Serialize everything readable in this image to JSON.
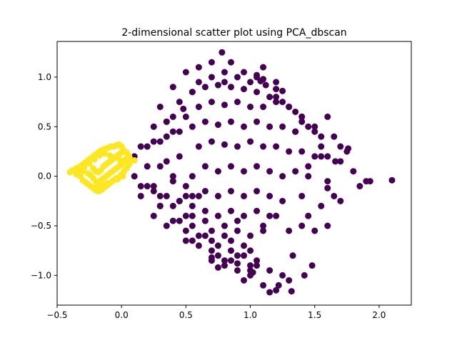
{
  "chart_data": {
    "type": "scatter",
    "title": "2-dimensional scatter plot using PCA_dbscan",
    "xlabel": "",
    "ylabel": "",
    "xlim": [
      -0.5,
      2.25
    ],
    "ylim": [
      -1.3,
      1.36
    ],
    "x_ticks": [
      {
        "value": -0.5,
        "label": "−0.5"
      },
      {
        "value": 0.0,
        "label": "0.0"
      },
      {
        "value": 0.5,
        "label": "0.5"
      },
      {
        "value": 1.0,
        "label": "1.0"
      },
      {
        "value": 1.5,
        "label": "1.5"
      },
      {
        "value": 2.0,
        "label": "2.0"
      }
    ],
    "y_ticks": [
      {
        "value": -1.0,
        "label": "−1.0"
      },
      {
        "value": -0.5,
        "label": "−0.5"
      },
      {
        "value": 0.0,
        "label": "0.0"
      },
      {
        "value": 0.5,
        "label": "0.5"
      },
      {
        "value": 1.0,
        "label": "1.0"
      }
    ],
    "grid": false,
    "legend": "none",
    "series": [
      {
        "color": "#440154",
        "x": [
          0.4,
          0.5,
          0.6,
          0.7,
          0.8,
          0.9,
          1.0,
          1.1,
          1.2,
          0.3,
          0.45,
          0.55,
          0.65,
          0.75,
          0.85,
          0.95,
          1.05,
          1.15,
          0.25,
          0.35,
          0.5,
          0.6,
          0.7,
          0.8,
          0.9,
          1.0,
          1.1,
          1.2,
          1.3,
          1.4,
          0.2,
          0.3,
          0.4,
          0.55,
          0.65,
          0.75,
          0.85,
          0.95,
          1.05,
          1.15,
          1.25,
          1.35,
          1.5,
          0.2,
          0.35,
          0.45,
          0.6,
          0.7,
          0.8,
          0.9,
          1.0,
          1.1,
          1.2,
          1.3,
          1.4,
          1.55,
          1.7,
          0.25,
          0.4,
          0.55,
          0.65,
          0.75,
          0.85,
          0.95,
          1.05,
          1.15,
          1.25,
          1.35,
          1.45,
          1.6,
          0.3,
          0.45,
          0.55,
          0.65,
          0.75,
          0.85,
          0.95,
          1.05,
          1.15,
          1.25,
          1.4,
          0.45,
          0.55,
          0.65,
          0.75,
          0.85,
          0.95,
          1.05,
          1.15,
          0.6,
          0.7,
          0.8,
          0.9,
          1.0,
          1.1,
          0.75,
          0.85,
          0.95,
          1.05,
          0.1,
          0.2,
          0.3,
          0.4,
          0.5,
          0.3,
          0.4,
          0.5,
          0.6,
          0.55,
          0.65,
          0.8,
          0.9,
          1.1,
          0.35,
          0.5,
          0.65,
          0.75,
          0.85,
          0.95,
          1.05,
          1.15,
          1.25,
          1.3,
          0.7,
          0.8,
          0.9,
          1.0,
          1.1,
          1.2,
          0.6,
          0.7,
          0.8,
          0.9,
          1.0,
          0.5,
          1.5,
          1.6,
          1.4,
          1.3,
          1.2,
          0.1,
          0.15,
          0.25,
          0.35,
          0.45,
          0.15,
          0.25,
          0.35,
          0.45,
          0.25,
          0.4,
          0.55,
          0.7,
          0.15,
          0.3,
          0.5,
          0.55,
          1.75,
          1.8,
          1.85,
          1.9,
          1.65,
          1.7,
          1.6,
          1.65,
          1.45,
          1.5,
          1.55,
          1.35,
          1.4,
          1.5,
          1.55,
          1.6,
          1.2,
          1.25,
          1.3,
          1.35,
          1.4,
          1.45,
          0.85,
          1.1,
          0.95,
          1.05,
          0.78,
          0.6,
          0.7,
          0.8,
          1.08,
          1.12,
          1.2,
          1.25,
          1.05,
          0.55,
          0.85,
          0.7,
          0.75,
          0.9,
          1.0,
          0.4,
          0.48,
          0.35,
          1.22,
          1.33,
          1.6,
          1.7,
          1.55,
          1.45,
          1.93,
          2.1,
          1.66,
          1.76,
          0.95,
          1.15,
          1.32,
          1.42,
          1.48,
          1.0,
          1.02
        ],
        "y": [
          0.9,
          1.05,
          1.1,
          1.15,
          1.05,
          1.0,
          0.95,
          0.98,
          0.95,
          0.7,
          0.75,
          0.85,
          0.9,
          0.92,
          0.9,
          0.88,
          0.85,
          0.8,
          0.5,
          0.55,
          0.6,
          0.7,
          0.75,
          0.72,
          0.75,
          0.7,
          0.7,
          0.75,
          0.7,
          0.6,
          0.3,
          0.35,
          0.45,
          0.5,
          0.55,
          0.52,
          0.55,
          0.5,
          0.55,
          0.5,
          0.5,
          0.45,
          0.45,
          0.1,
          0.15,
          0.2,
          0.3,
          0.35,
          0.32,
          0.3,
          0.35,
          0.3,
          0.3,
          0.25,
          0.25,
          0.2,
          0.15,
          -0.1,
          -0.05,
          0.0,
          0.1,
          0.05,
          0.1,
          0.05,
          0.1,
          0.05,
          0.0,
          0.05,
          0.0,
          -0.05,
          -0.3,
          -0.25,
          -0.2,
          -0.15,
          -0.2,
          -0.15,
          -0.2,
          -0.15,
          -0.2,
          -0.25,
          -0.2,
          -0.45,
          -0.4,
          -0.45,
          -0.4,
          -0.35,
          -0.4,
          -0.35,
          -0.4,
          -0.6,
          -0.65,
          -0.6,
          -0.55,
          -0.6,
          -0.55,
          -0.8,
          -0.75,
          -0.8,
          -0.85,
          0.0,
          -0.1,
          -0.2,
          -0.3,
          -0.4,
          0.1,
          0.0,
          -0.1,
          -0.2,
          -0.3,
          -0.35,
          -0.5,
          -0.45,
          -0.5,
          -0.5,
          -0.55,
          -0.6,
          -0.7,
          -0.65,
          -0.7,
          -0.9,
          -0.95,
          -1.0,
          -1.05,
          -0.85,
          -0.9,
          -0.95,
          -1.0,
          -1.1,
          -1.15,
          -0.7,
          -0.75,
          -0.85,
          -0.8,
          -0.75,
          -0.65,
          -0.55,
          -0.5,
          -0.5,
          -0.55,
          -0.4,
          0.2,
          0.3,
          0.35,
          0.4,
          0.45,
          -0.1,
          -0.15,
          -0.2,
          -0.25,
          -0.4,
          -0.45,
          -0.5,
          -0.55,
          -0.2,
          -0.3,
          -0.2,
          -0.65,
          0.25,
          0.05,
          -0.1,
          -0.05,
          0.4,
          0.3,
          0.2,
          -0.2,
          0.1,
          0.2,
          0.3,
          0.45,
          0.6,
          0.5,
          0.4,
          0.6,
          0.8,
          0.75,
          0.7,
          0.65,
          0.55,
          0.5,
          1.15,
          1.1,
          1.05,
          1.0,
          1.25,
          0.95,
          1.0,
          0.95,
          0.96,
          0.92,
          0.88,
          0.86,
          1.02,
          0.85,
          -0.85,
          -0.82,
          -0.92,
          -0.88,
          -0.9,
          0.6,
          0.68,
          0.55,
          -1.1,
          -0.8,
          -0.12,
          -0.25,
          -0.3,
          -0.4,
          -0.05,
          -0.04,
          0.15,
          0.28,
          -1.05,
          -1.17,
          -1.16,
          -1.0,
          -0.9,
          -0.95,
          -0.97
        ]
      },
      {
        "color": "#fde725",
        "x": [
          -0.4,
          -0.38,
          -0.35,
          -0.35,
          -0.32,
          -0.32,
          -0.3,
          -0.3,
          -0.3,
          -0.28,
          -0.28,
          -0.26,
          -0.26,
          -0.26,
          -0.24,
          -0.24,
          -0.24,
          -0.22,
          -0.22,
          -0.22,
          -0.22,
          -0.2,
          -0.2,
          -0.2,
          -0.2,
          -0.18,
          -0.18,
          -0.18,
          -0.18,
          -0.16,
          -0.16,
          -0.16,
          -0.16,
          -0.14,
          -0.14,
          -0.14,
          -0.14,
          -0.12,
          -0.12,
          -0.12,
          -0.12,
          -0.1,
          -0.1,
          -0.1,
          -0.1,
          -0.08,
          -0.08,
          -0.08,
          -0.08,
          -0.06,
          -0.06,
          -0.06,
          -0.06,
          -0.04,
          -0.04,
          -0.04,
          -0.04,
          -0.02,
          -0.02,
          -0.02,
          -0.02,
          0.0,
          0.0,
          0.0,
          0.0,
          0.02,
          0.02,
          0.02,
          0.04,
          0.04,
          0.04,
          0.06,
          0.06,
          0.08,
          0.1,
          -0.33,
          -0.29,
          -0.25,
          -0.21,
          -0.17,
          -0.13,
          -0.09,
          -0.05,
          -0.01,
          0.03,
          -0.19,
          -0.15,
          -0.11,
          -0.07,
          -0.03,
          0.01
        ],
        "y": [
          0.04,
          0.06,
          0.02,
          0.08,
          0.0,
          0.1,
          -0.04,
          0.05,
          0.12,
          -0.06,
          0.14,
          -0.08,
          0.03,
          0.16,
          -0.1,
          0.01,
          0.18,
          -0.12,
          -0.02,
          0.08,
          0.2,
          -0.14,
          -0.05,
          0.05,
          0.22,
          -0.15,
          -0.06,
          0.04,
          0.24,
          -0.14,
          -0.04,
          0.06,
          0.26,
          -0.12,
          -0.02,
          0.1,
          0.27,
          -0.1,
          0.0,
          0.12,
          0.28,
          -0.08,
          0.02,
          0.14,
          0.29,
          -0.06,
          0.04,
          0.16,
          0.3,
          -0.04,
          0.06,
          0.18,
          0.3,
          -0.02,
          0.08,
          0.2,
          0.31,
          -0.01,
          0.1,
          0.22,
          0.32,
          0.02,
          0.12,
          0.24,
          0.3,
          0.05,
          0.16,
          0.26,
          0.08,
          0.18,
          0.24,
          0.12,
          0.2,
          0.16,
          0.16,
          0.04,
          0.09,
          0.13,
          0.17,
          0.21,
          0.23,
          0.21,
          0.19,
          0.16,
          0.14,
          -0.09,
          -0.09,
          -0.07,
          -0.05,
          -0.03,
          0.0
        ]
      }
    ]
  }
}
